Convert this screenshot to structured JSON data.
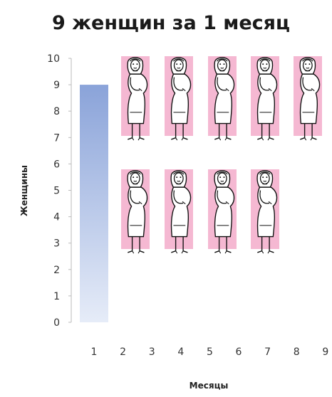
{
  "chart_data": {
    "type": "bar",
    "title": "9 женщин за 1 месяц",
    "xlabel": "Месяцы",
    "ylabel": "Женщины",
    "categories": [
      "1",
      "2",
      "3",
      "4",
      "5",
      "6",
      "7",
      "8",
      "9"
    ],
    "values": [
      9,
      null,
      null,
      null,
      null,
      null,
      null,
      null,
      null
    ],
    "yticks": [
      "0",
      "1",
      "2",
      "3",
      "4",
      "5",
      "6",
      "7",
      "8",
      "9",
      "10"
    ],
    "ylim": [
      0,
      10
    ],
    "grid": false,
    "legend": "none",
    "bar_color": "#8aa3d9",
    "pictograph": {
      "icon": "pregnant-woman-icon",
      "count": 9,
      "rows": [
        5,
        4
      ],
      "background_color": "#f5b8d2"
    }
  }
}
